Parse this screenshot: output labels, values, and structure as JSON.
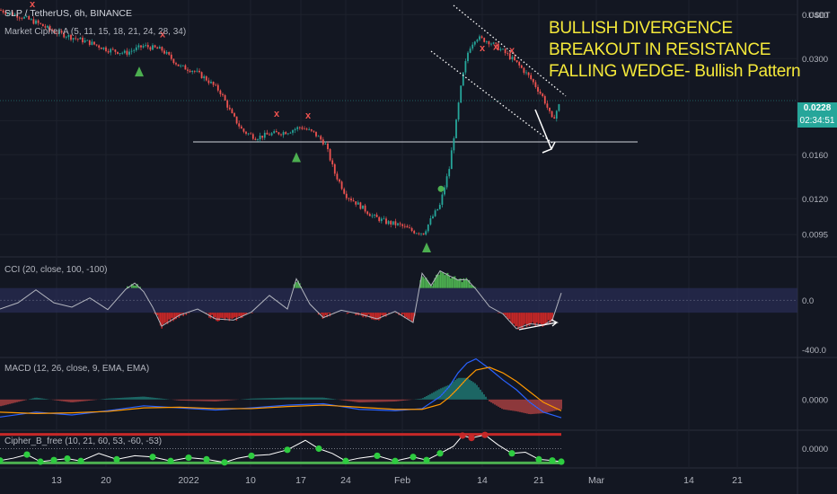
{
  "header": {
    "symbol_line": "SLP / TetherUS, 6h, BINANCE",
    "currency": "USDT"
  },
  "annotation": {
    "line1": "BULLISH DIVERGENCE",
    "line2": "BREAKOUT IN RESISTANCE",
    "line3": "FALLING WEDGE- Bullish Pattern"
  },
  "current_price": {
    "value": "0.0228",
    "countdown": "02:34:51"
  },
  "colors": {
    "background": "#131722",
    "up": "#26a69a",
    "down": "#ef5350",
    "annotation": "#f5e93a"
  },
  "chart_data": [
    {
      "type": "candlestick",
      "pane": "price",
      "indicator_label": "Market Cipher A (5, 11, 15, 18, 21, 24, 28, 34)",
      "y_ticks": [
        "0.0400",
        "0.0300",
        "0.0200",
        "0.0160",
        "0.0120",
        "0.0095"
      ],
      "ylim": [
        0.0085,
        0.042
      ],
      "y_scale": "log",
      "x_ticks": [
        "13",
        "20",
        "2022",
        "10",
        "17",
        "24",
        "Feb",
        "14",
        "21",
        "Mar",
        "14",
        "21"
      ],
      "price_path_x": [
        0,
        20,
        40,
        60,
        80,
        100,
        120,
        140,
        160,
        180,
        200,
        215,
        230,
        245,
        258,
        270,
        285,
        300,
        320,
        335,
        350,
        362,
        372,
        385,
        400,
        415,
        430,
        445,
        460,
        472,
        480,
        490,
        500,
        508,
        515,
        522,
        530,
        545,
        560,
        575,
        590,
        605,
        615,
        625
      ],
      "price_path_y": [
        0.0412,
        0.0398,
        0.038,
        0.0358,
        0.0345,
        0.0333,
        0.0318,
        0.0311,
        0.0326,
        0.0318,
        0.0285,
        0.0278,
        0.0262,
        0.0242,
        0.0208,
        0.0187,
        0.0179,
        0.0183,
        0.0186,
        0.0192,
        0.0184,
        0.0172,
        0.0143,
        0.0123,
        0.0115,
        0.0107,
        0.0103,
        0.0101,
        0.0097,
        0.0096,
        0.0105,
        0.0115,
        0.0145,
        0.0198,
        0.0265,
        0.032,
        0.0345,
        0.0335,
        0.0315,
        0.0292,
        0.0265,
        0.0232,
        0.02,
        0.0228
      ],
      "buy_signals": [
        [
          155,
          0.0275
        ],
        [
          330,
          0.0157
        ],
        [
          475,
          0.0087
        ]
      ],
      "sell_signals": [
        [
          36,
          0.042
        ],
        [
          181,
          0.0345
        ],
        [
          308,
          0.0205
        ],
        [
          343,
          0.0203
        ],
        [
          537,
          0.0315
        ],
        [
          552,
          0.0318
        ],
        [
          570,
          0.031
        ]
      ],
      "support_level": 0.0174,
      "wedge_upper": [
        [
          505,
          0.0425
        ],
        [
          630,
          0.0235
        ]
      ],
      "wedge_lower": [
        [
          480,
          0.0315
        ],
        [
          615,
          0.0173
        ]
      ]
    },
    {
      "type": "area",
      "pane": "cci",
      "indicator_label": "CCI (20, close, 100, -100)",
      "y_ticks": [
        "0.0",
        "-400.0"
      ],
      "bands": [
        100,
        -100
      ],
      "ylim": [
        -420,
        280
      ],
      "x": [
        0,
        20,
        40,
        60,
        80,
        100,
        120,
        140,
        150,
        160,
        170,
        180,
        200,
        220,
        240,
        260,
        280,
        300,
        320,
        330,
        345,
        360,
        380,
        400,
        420,
        440,
        460,
        470,
        480,
        490,
        500,
        510,
        520,
        530,
        545,
        560,
        575,
        590,
        605,
        615,
        625
      ],
      "values": [
        -70,
        -20,
        85,
        -20,
        -55,
        20,
        -75,
        90,
        140,
        70,
        -55,
        -210,
        -120,
        -70,
        -150,
        -160,
        -95,
        40,
        -70,
        175,
        -30,
        -140,
        -80,
        -110,
        -150,
        -90,
        -180,
        220,
        120,
        240,
        200,
        165,
        170,
        90,
        -50,
        -110,
        -230,
        -190,
        -200,
        -160,
        60
      ]
    },
    {
      "type": "line",
      "pane": "macd",
      "indicator_label": "MACD (12, 26, close, 9, EMA, EMA)",
      "y_ticks": [
        "0.0000"
      ],
      "ylim": [
        -0.004,
        0.006
      ],
      "x": [
        0,
        40,
        80,
        120,
        160,
        200,
        240,
        280,
        320,
        360,
        400,
        440,
        470,
        490,
        500,
        510,
        520,
        530,
        545,
        560,
        575,
        590,
        605,
        625
      ],
      "macd": [
        -0.0025,
        -0.0018,
        -0.0022,
        -0.0016,
        -0.0009,
        -0.0012,
        -0.0015,
        -0.0012,
        -0.0008,
        -0.0006,
        -0.0014,
        -0.0016,
        -0.0013,
        0.0004,
        0.0018,
        0.0038,
        0.0052,
        0.0058,
        0.0044,
        0.0028,
        0.0014,
        -0.0004,
        -0.0018,
        -0.0026
      ],
      "signal": [
        -0.0018,
        -0.002,
        -0.0019,
        -0.0017,
        -0.0012,
        -0.0011,
        -0.0013,
        -0.0013,
        -0.001,
        -0.0008,
        -0.0011,
        -0.0014,
        -0.0014,
        -0.0007,
        0.0003,
        0.0016,
        0.003,
        0.0042,
        0.0046,
        0.0038,
        0.0026,
        0.0011,
        -0.0004,
        -0.0016
      ]
    },
    {
      "type": "line",
      "pane": "cipher_b",
      "indicator_label": "Cipher_B_free (10, 21, 60, 53, -60, -53)",
      "y_ticks": [
        "0.0000"
      ],
      "ylim": [
        -70,
        70
      ],
      "x": [
        0,
        15,
        30,
        45,
        60,
        75,
        90,
        110,
        130,
        150,
        170,
        190,
        210,
        230,
        250,
        265,
        280,
        300,
        320,
        340,
        355,
        370,
        385,
        400,
        420,
        440,
        460,
        475,
        490,
        505,
        515,
        525,
        540,
        555,
        570,
        585,
        600,
        615,
        625
      ],
      "values": [
        -50,
        -40,
        -25,
        -55,
        -48,
        -42,
        -52,
        -20,
        -45,
        -30,
        -35,
        -52,
        -38,
        -45,
        -58,
        -40,
        -30,
        -25,
        -5,
        35,
        0,
        -20,
        -52,
        -40,
        -30,
        -52,
        -35,
        -48,
        -20,
        10,
        55,
        45,
        58,
        15,
        -20,
        -15,
        -45,
        -50,
        -55
      ],
      "overbought": 60,
      "oversold": -60
    }
  ]
}
